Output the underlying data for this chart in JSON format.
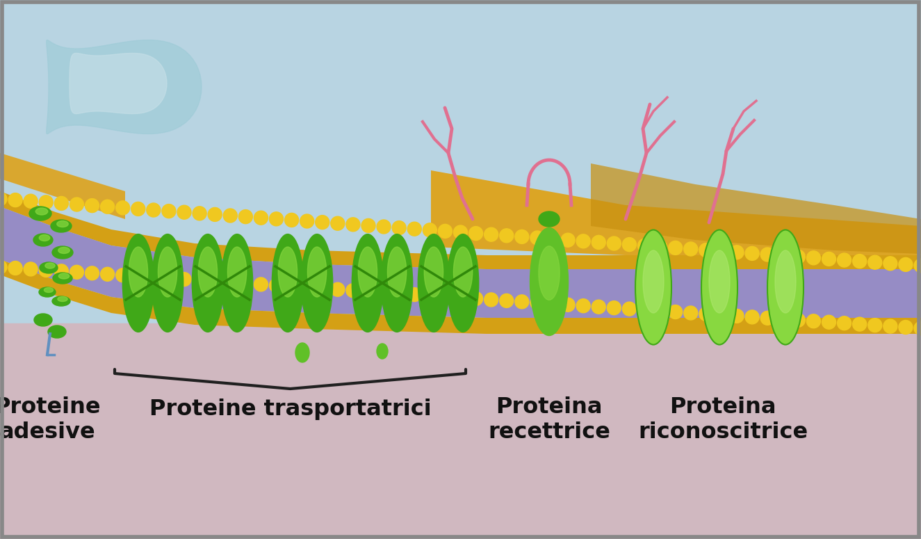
{
  "bg_color_top": "#b8d4e2",
  "bg_color_bottom": "#d0b8c0",
  "label_proteine_adesive": "Proteine\nadesive",
  "label_proteine_trasportatrici": "Proteine trasportatrici",
  "label_proteina_recettrice": "Proteina\nrecettrice",
  "label_proteina_riconoscitrice": "Proteina\nriconoscitrice",
  "text_color": "#111111",
  "membrane_gold_color": "#f0c820",
  "membrane_purple_color": "#9080c0",
  "protein_green_dark": "#40a818",
  "protein_green_light": "#88d840",
  "protein_green_mid": "#60c028",
  "pink_color": "#e07090",
  "brace_color": "#202020",
  "border_color": "#888888",
  "figsize": [
    13.25,
    7.75
  ],
  "dpi": 100
}
